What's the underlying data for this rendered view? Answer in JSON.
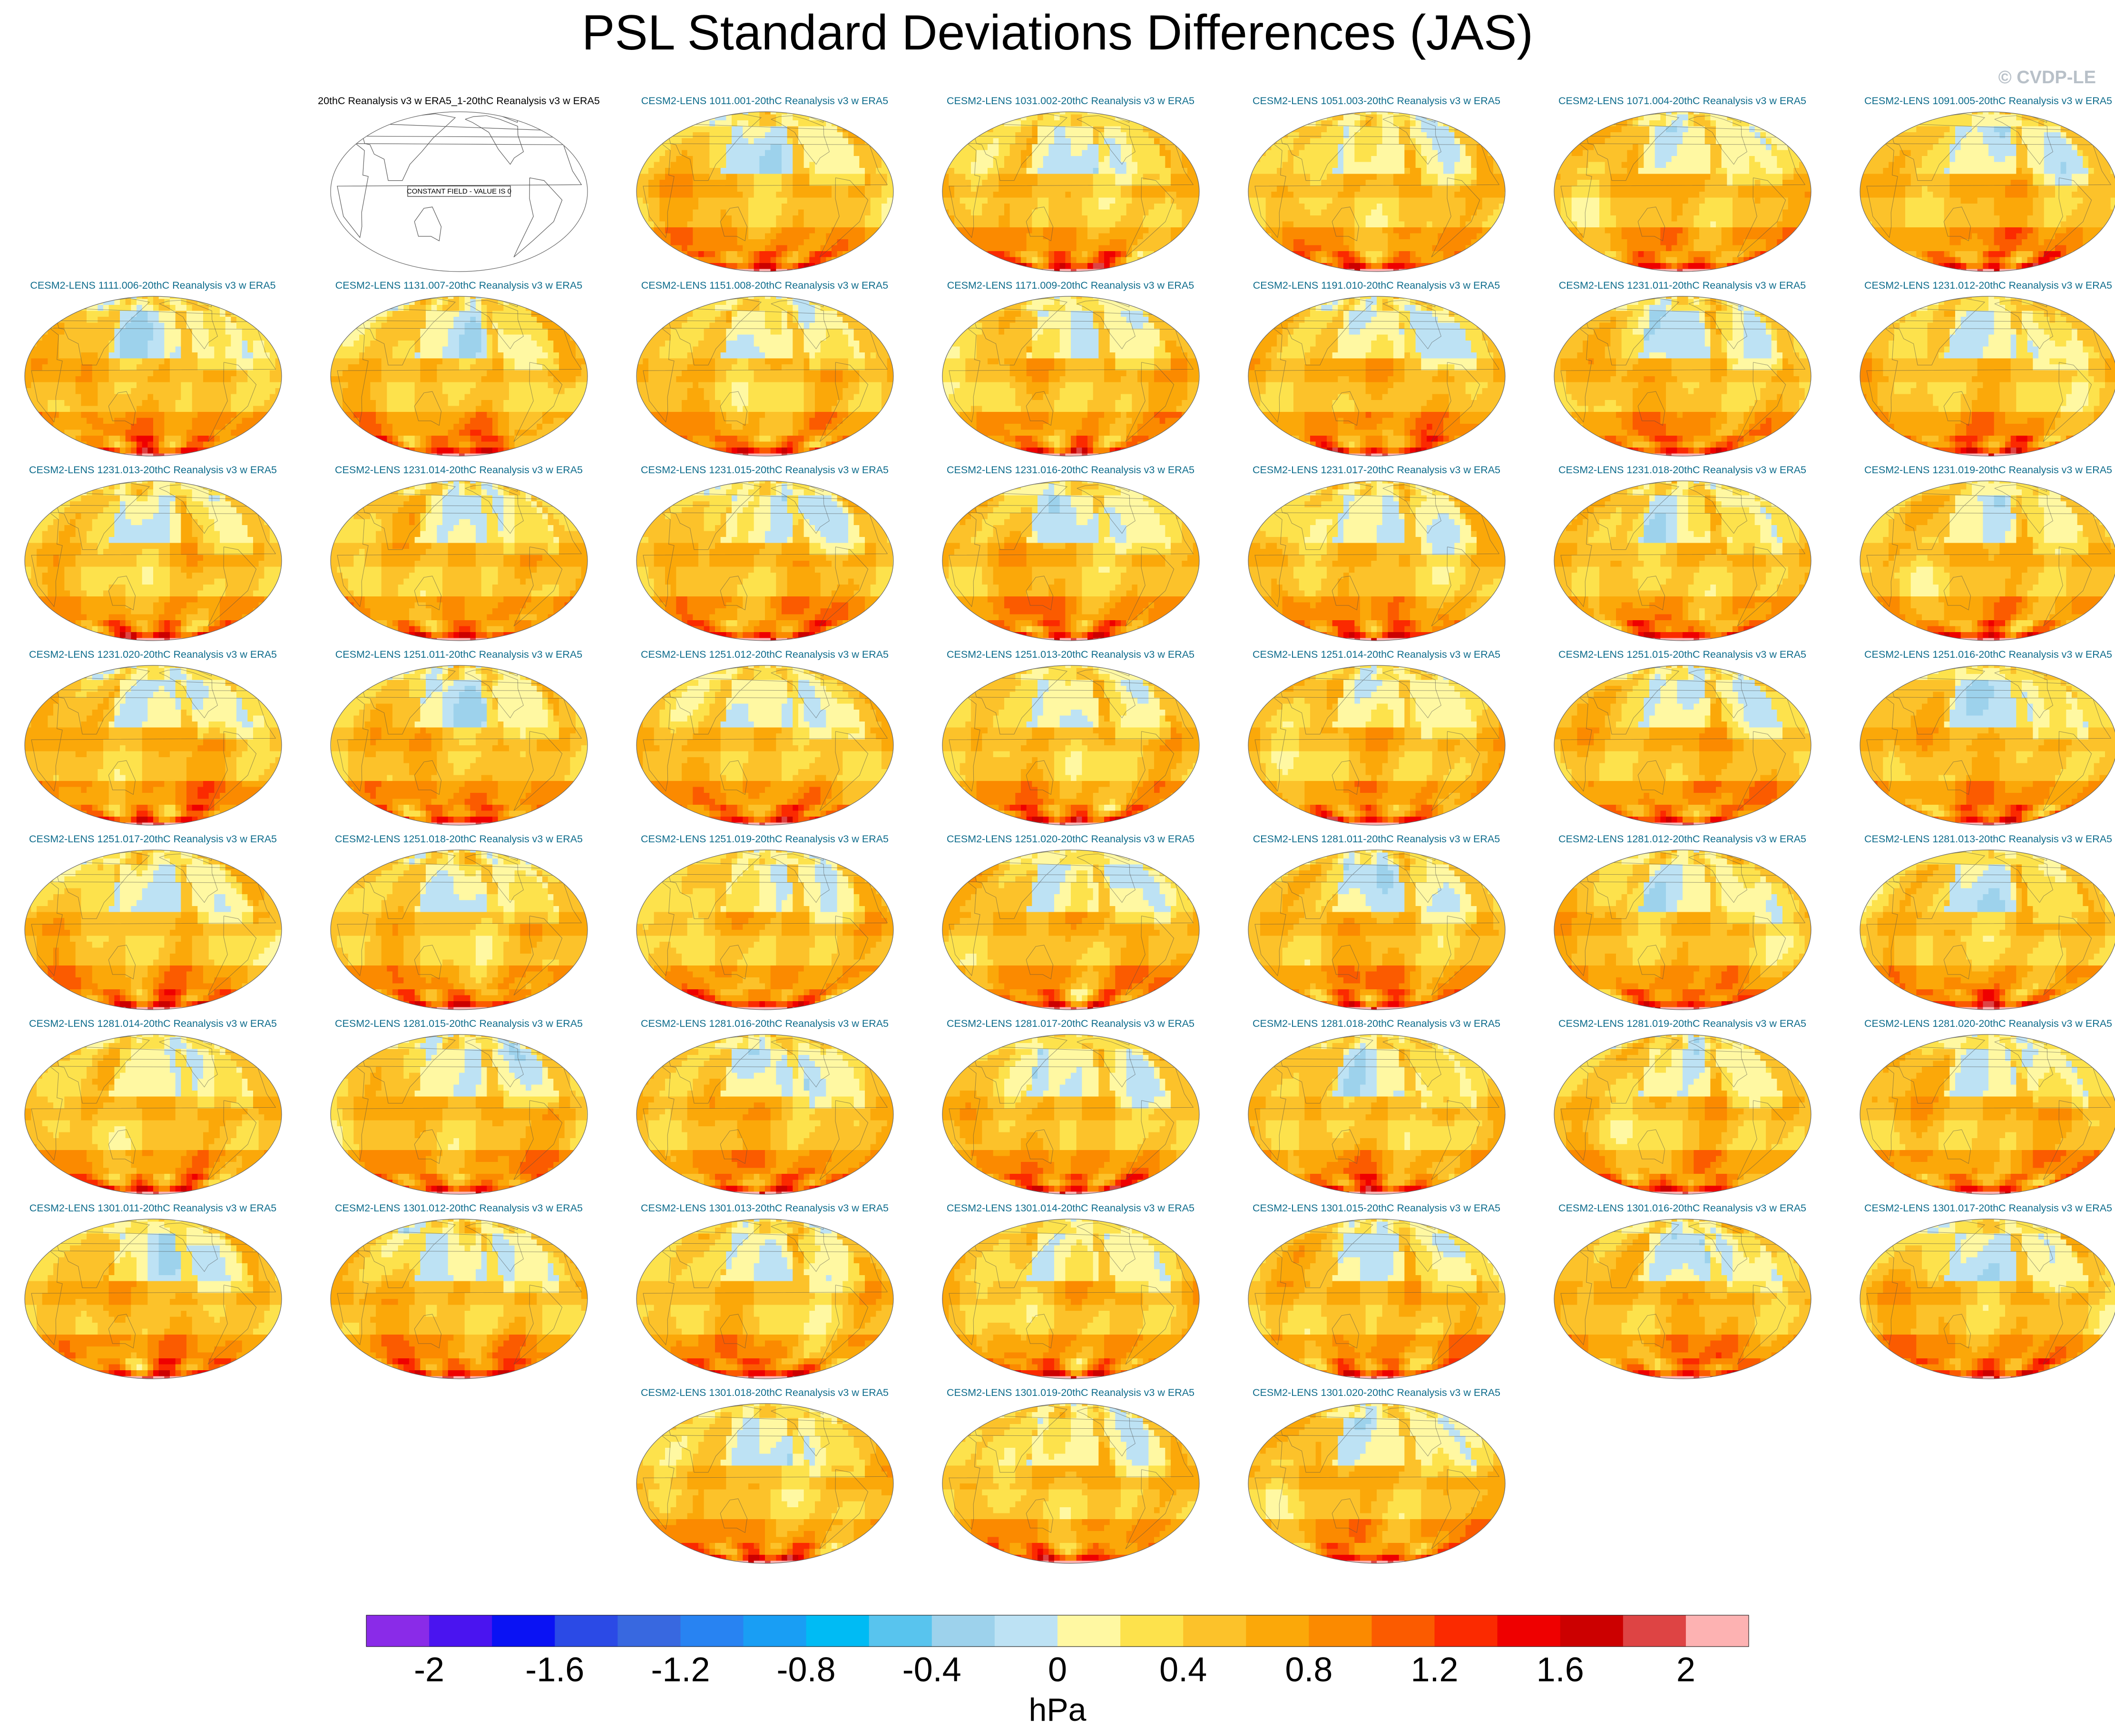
{
  "title": "PSL Standard Deviations Differences (JAS)",
  "watermark": "© CVDP-LE",
  "chart_data": {
    "type": "map-panel-grid",
    "variable": "PSL",
    "season": "JAS",
    "units": "hPa",
    "colorbar": {
      "label": "hPa",
      "levels": [
        -2.2,
        -2,
        -1.8,
        -1.6,
        -1.4,
        -1.2,
        -1,
        -0.8,
        -0.6,
        -0.4,
        -0.2,
        0,
        0.2,
        0.4,
        0.6,
        0.8,
        1,
        1.2,
        1.4,
        1.6,
        1.8,
        2,
        2.2
      ],
      "tick_labels": [
        "-2",
        "-1.6",
        "-1.2",
        "-0.8",
        "-0.4",
        "0",
        "0.4",
        "0.8",
        "1.2",
        "1.6",
        "2"
      ],
      "tick_values": [
        -2,
        -1.6,
        -1.2,
        -0.8,
        -0.4,
        0,
        0.4,
        0.8,
        1.2,
        1.6,
        2
      ],
      "colors": [
        "#8a2be8",
        "#4a14f0",
        "#0a12f4",
        "#2b4ae6",
        "#3868e0",
        "#2883f2",
        "#199ef4",
        "#00bbf4",
        "#58c4ee",
        "#9dd2ec",
        "#bde2f4",
        "#fff8a2",
        "#fde24c",
        "#fcc22a",
        "#fba809",
        "#fb8a00",
        "#fb5b00",
        "#fb2a00",
        "#ef0000",
        "#cc0000",
        "#de4444",
        "#fdb2b2"
      ]
    },
    "panels": [
      {
        "title": "20thC Reanalysis v3 w ERA5_1-20thC Reanalysis v3 w ERA5",
        "constant_field": true,
        "note": "CONSTANT FIELD - VALUE IS 0"
      },
      {
        "title": "CESM2-LENS 1011.001-20thC Reanalysis v3 w ERA5"
      },
      {
        "title": "CESM2-LENS 1031.002-20thC Reanalysis v3 w ERA5"
      },
      {
        "title": "CESM2-LENS 1051.003-20thC Reanalysis v3 w ERA5"
      },
      {
        "title": "CESM2-LENS 1071.004-20thC Reanalysis v3 w ERA5"
      },
      {
        "title": "CESM2-LENS 1091.005-20thC Reanalysis v3 w ERA5"
      },
      {
        "title": "CESM2-LENS 1111.006-20thC Reanalysis v3 w ERA5"
      },
      {
        "title": "CESM2-LENS 1131.007-20thC Reanalysis v3 w ERA5"
      },
      {
        "title": "CESM2-LENS 1151.008-20thC Reanalysis v3 w ERA5"
      },
      {
        "title": "CESM2-LENS 1171.009-20thC Reanalysis v3 w ERA5"
      },
      {
        "title": "CESM2-LENS 1191.010-20thC Reanalysis v3 w ERA5"
      },
      {
        "title": "CESM2-LENS 1231.011-20thC Reanalysis v3 w ERA5"
      },
      {
        "title": "CESM2-LENS 1231.012-20thC Reanalysis v3 w ERA5"
      },
      {
        "title": "CESM2-LENS 1231.013-20thC Reanalysis v3 w ERA5"
      },
      {
        "title": "CESM2-LENS 1231.014-20thC Reanalysis v3 w ERA5"
      },
      {
        "title": "CESM2-LENS 1231.015-20thC Reanalysis v3 w ERA5"
      },
      {
        "title": "CESM2-LENS 1231.016-20thC Reanalysis v3 w ERA5"
      },
      {
        "title": "CESM2-LENS 1231.017-20thC Reanalysis v3 w ERA5"
      },
      {
        "title": "CESM2-LENS 1231.018-20thC Reanalysis v3 w ERA5"
      },
      {
        "title": "CESM2-LENS 1231.019-20thC Reanalysis v3 w ERA5"
      },
      {
        "title": "CESM2-LENS 1231.020-20thC Reanalysis v3 w ERA5"
      },
      {
        "title": "CESM2-LENS 1251.011-20thC Reanalysis v3 w ERA5"
      },
      {
        "title": "CESM2-LENS 1251.012-20thC Reanalysis v3 w ERA5"
      },
      {
        "title": "CESM2-LENS 1251.013-20thC Reanalysis v3 w ERA5"
      },
      {
        "title": "CESM2-LENS 1251.014-20thC Reanalysis v3 w ERA5"
      },
      {
        "title": "CESM2-LENS 1251.015-20thC Reanalysis v3 w ERA5"
      },
      {
        "title": "CESM2-LENS 1251.016-20thC Reanalysis v3 w ERA5"
      },
      {
        "title": "CESM2-LENS 1251.017-20thC Reanalysis v3 w ERA5"
      },
      {
        "title": "CESM2-LENS 1251.018-20thC Reanalysis v3 w ERA5"
      },
      {
        "title": "CESM2-LENS 1251.019-20thC Reanalysis v3 w ERA5"
      },
      {
        "title": "CESM2-LENS 1251.020-20thC Reanalysis v3 w ERA5"
      },
      {
        "title": "CESM2-LENS 1281.011-20thC Reanalysis v3 w ERA5"
      },
      {
        "title": "CESM2-LENS 1281.012-20thC Reanalysis v3 w ERA5"
      },
      {
        "title": "CESM2-LENS 1281.013-20thC Reanalysis v3 w ERA5"
      },
      {
        "title": "CESM2-LENS 1281.014-20thC Reanalysis v3 w ERA5"
      },
      {
        "title": "CESM2-LENS 1281.015-20thC Reanalysis v3 w ERA5"
      },
      {
        "title": "CESM2-LENS 1281.016-20thC Reanalysis v3 w ERA5"
      },
      {
        "title": "CESM2-LENS 1281.017-20thC Reanalysis v3 w ERA5"
      },
      {
        "title": "CESM2-LENS 1281.018-20thC Reanalysis v3 w ERA5"
      },
      {
        "title": "CESM2-LENS 1281.019-20thC Reanalysis v3 w ERA5"
      },
      {
        "title": "CESM2-LENS 1281.020-20thC Reanalysis v3 w ERA5"
      },
      {
        "title": "CESM2-LENS 1301.011-20thC Reanalysis v3 w ERA5"
      },
      {
        "title": "CESM2-LENS 1301.012-20thC Reanalysis v3 w ERA5"
      },
      {
        "title": "CESM2-LENS 1301.013-20thC Reanalysis v3 w ERA5"
      },
      {
        "title": "CESM2-LENS 1301.014-20thC Reanalysis v3 w ERA5"
      },
      {
        "title": "CESM2-LENS 1301.015-20thC Reanalysis v3 w ERA5"
      },
      {
        "title": "CESM2-LENS 1301.016-20thC Reanalysis v3 w ERA5"
      },
      {
        "title": "CESM2-LENS 1301.017-20thC Reanalysis v3 w ERA5"
      },
      {
        "title": "CESM2-LENS 1301.018-20thC Reanalysis v3 w ERA5"
      },
      {
        "title": "CESM2-LENS 1301.019-20thC Reanalysis v3 w ERA5"
      },
      {
        "title": "CESM2-LENS 1301.020-20thC Reanalysis v3 w ERA5"
      }
    ]
  }
}
